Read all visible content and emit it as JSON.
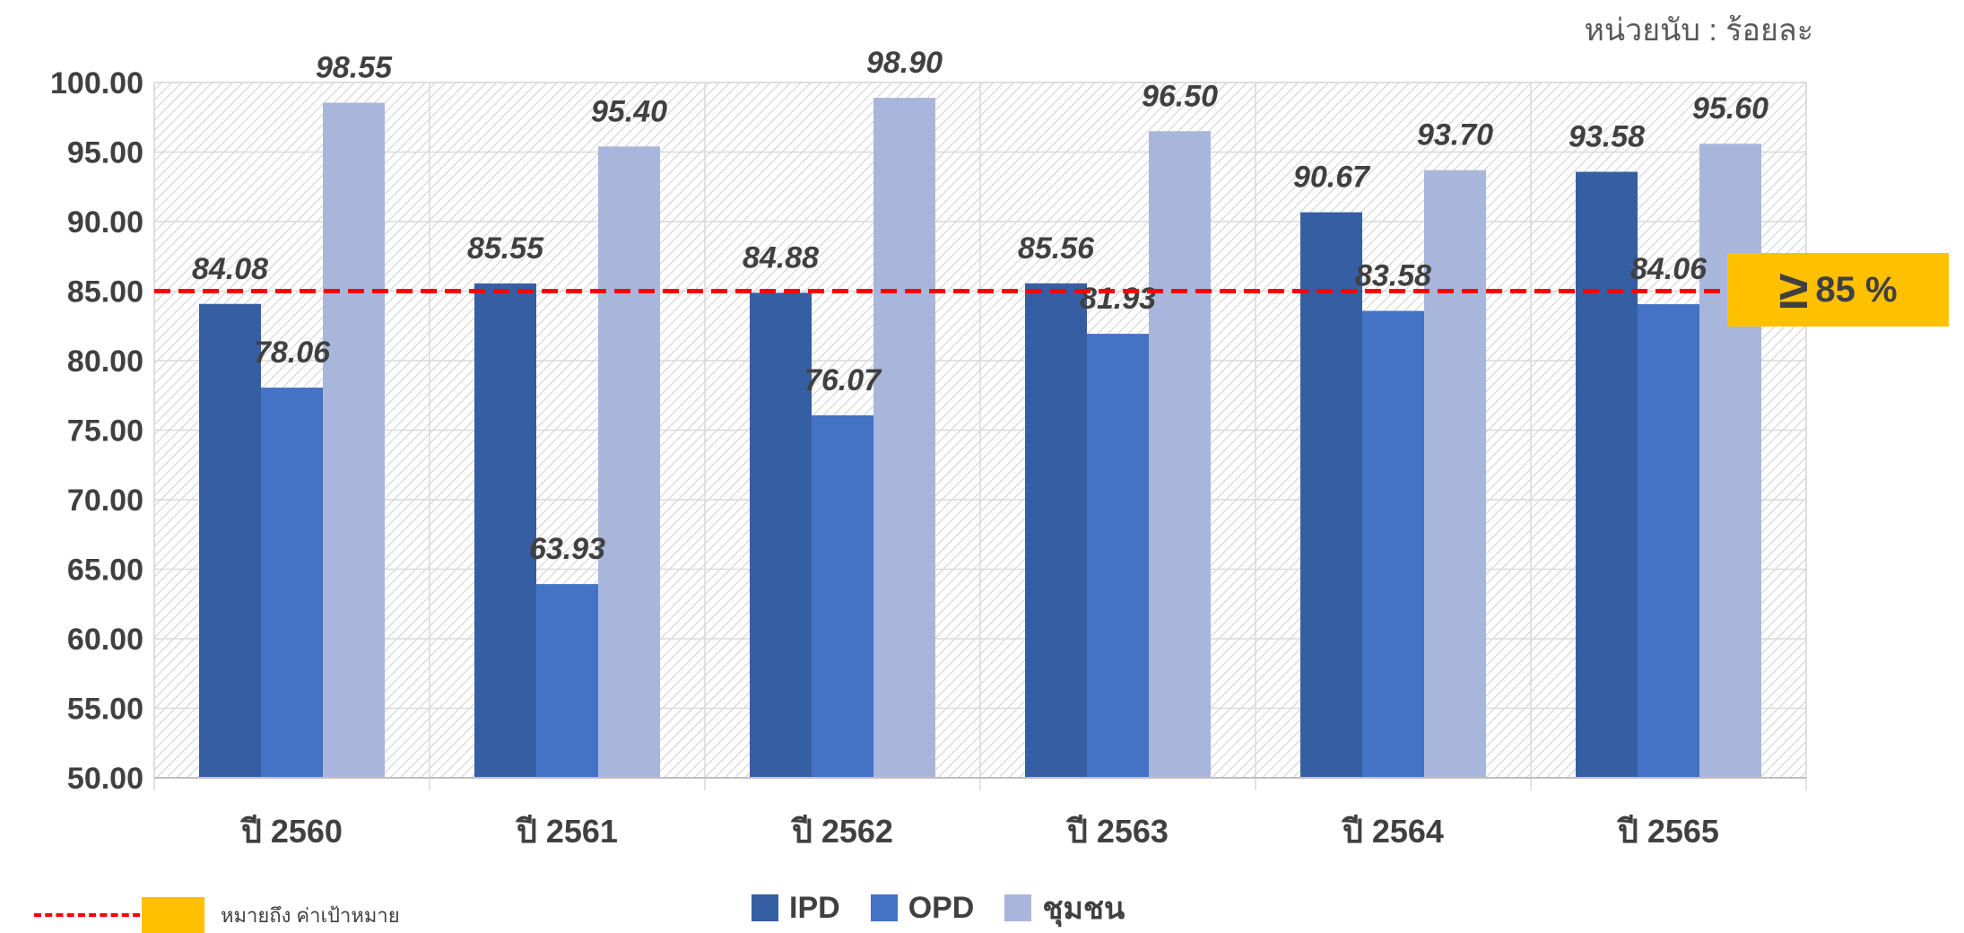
{
  "unit_label": "หน่วยนับ : ร้อยละ",
  "target_badge": {
    "symbol": "≥",
    "value": "85 %"
  },
  "note": {
    "text": "หมายถึง ค่าเป้าหมาย"
  },
  "colors": {
    "IPD": "#365fa3",
    "OPD": "#4472c4",
    "community": "#a9b6dc",
    "target_line": "#ff0000",
    "target_badge": "#ffc000"
  },
  "legend": [
    {
      "label": "IPD",
      "color": "#365fa3"
    },
    {
      "label": "OPD",
      "color": "#4472c4"
    },
    {
      "label": "ชุมชน",
      "color": "#a9b6dc"
    }
  ],
  "chart_data": {
    "type": "bar",
    "categories": [
      "ปี 2560",
      "ปี 2561",
      "ปี 2562",
      "ปี 2563",
      "ปี 2564",
      "ปี 2565"
    ],
    "series": [
      {
        "name": "IPD",
        "values": [
          84.08,
          85.55,
          84.88,
          85.56,
          90.67,
          93.58
        ],
        "labels": [
          "84.08",
          "85.55",
          "84.88",
          "85.56",
          "90.67",
          "93.58"
        ]
      },
      {
        "name": "OPD",
        "values": [
          78.06,
          63.93,
          76.07,
          81.93,
          83.58,
          84.06
        ],
        "labels": [
          "78.06",
          "63.93",
          "76.07",
          "81.93",
          "83.58",
          "84.06"
        ]
      },
      {
        "name": "ชุมชน",
        "values": [
          98.55,
          95.4,
          98.9,
          96.5,
          93.7,
          95.6
        ],
        "labels": [
          "98.55",
          "95.40",
          "98.90",
          "96.50",
          "93.70",
          "95.60"
        ]
      }
    ],
    "ylim": [
      50,
      100
    ],
    "yticks": [
      "50.00",
      "55.00",
      "60.00",
      "65.00",
      "70.00",
      "75.00",
      "80.00",
      "85.00",
      "90.00",
      "95.00",
      "100.00"
    ],
    "target": 85,
    "grid": true,
    "legend_position": "bottom"
  }
}
